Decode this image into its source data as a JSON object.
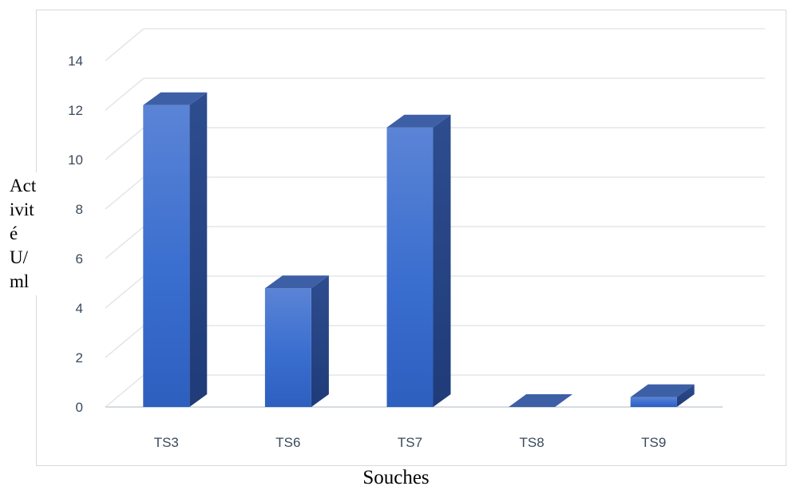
{
  "chart_data": {
    "type": "bar",
    "title": "",
    "xlabel": "Souches",
    "ylabel_lines": [
      "Act",
      "ivit",
      "é",
      "U/",
      "ml"
    ],
    "categories": [
      "TS3",
      "TS6",
      "TS7",
      "TS8",
      "TS9"
    ],
    "series": [
      {
        "values": [
          12.2,
          4.8,
          11.3,
          0.0,
          0.4
        ]
      }
    ],
    "ylim": [
      0,
      14
    ],
    "yticks": [
      "0",
      "2",
      "4",
      "6",
      "8",
      "10",
      "12",
      "14"
    ],
    "grid": true,
    "legend": "none",
    "style": "3d-column",
    "colors": {
      "front": "#3b6fd1",
      "side": "#243f7c",
      "top": "#3d5fa6",
      "grid": "#e3e6ea",
      "floor": "#d6dbe1"
    }
  }
}
